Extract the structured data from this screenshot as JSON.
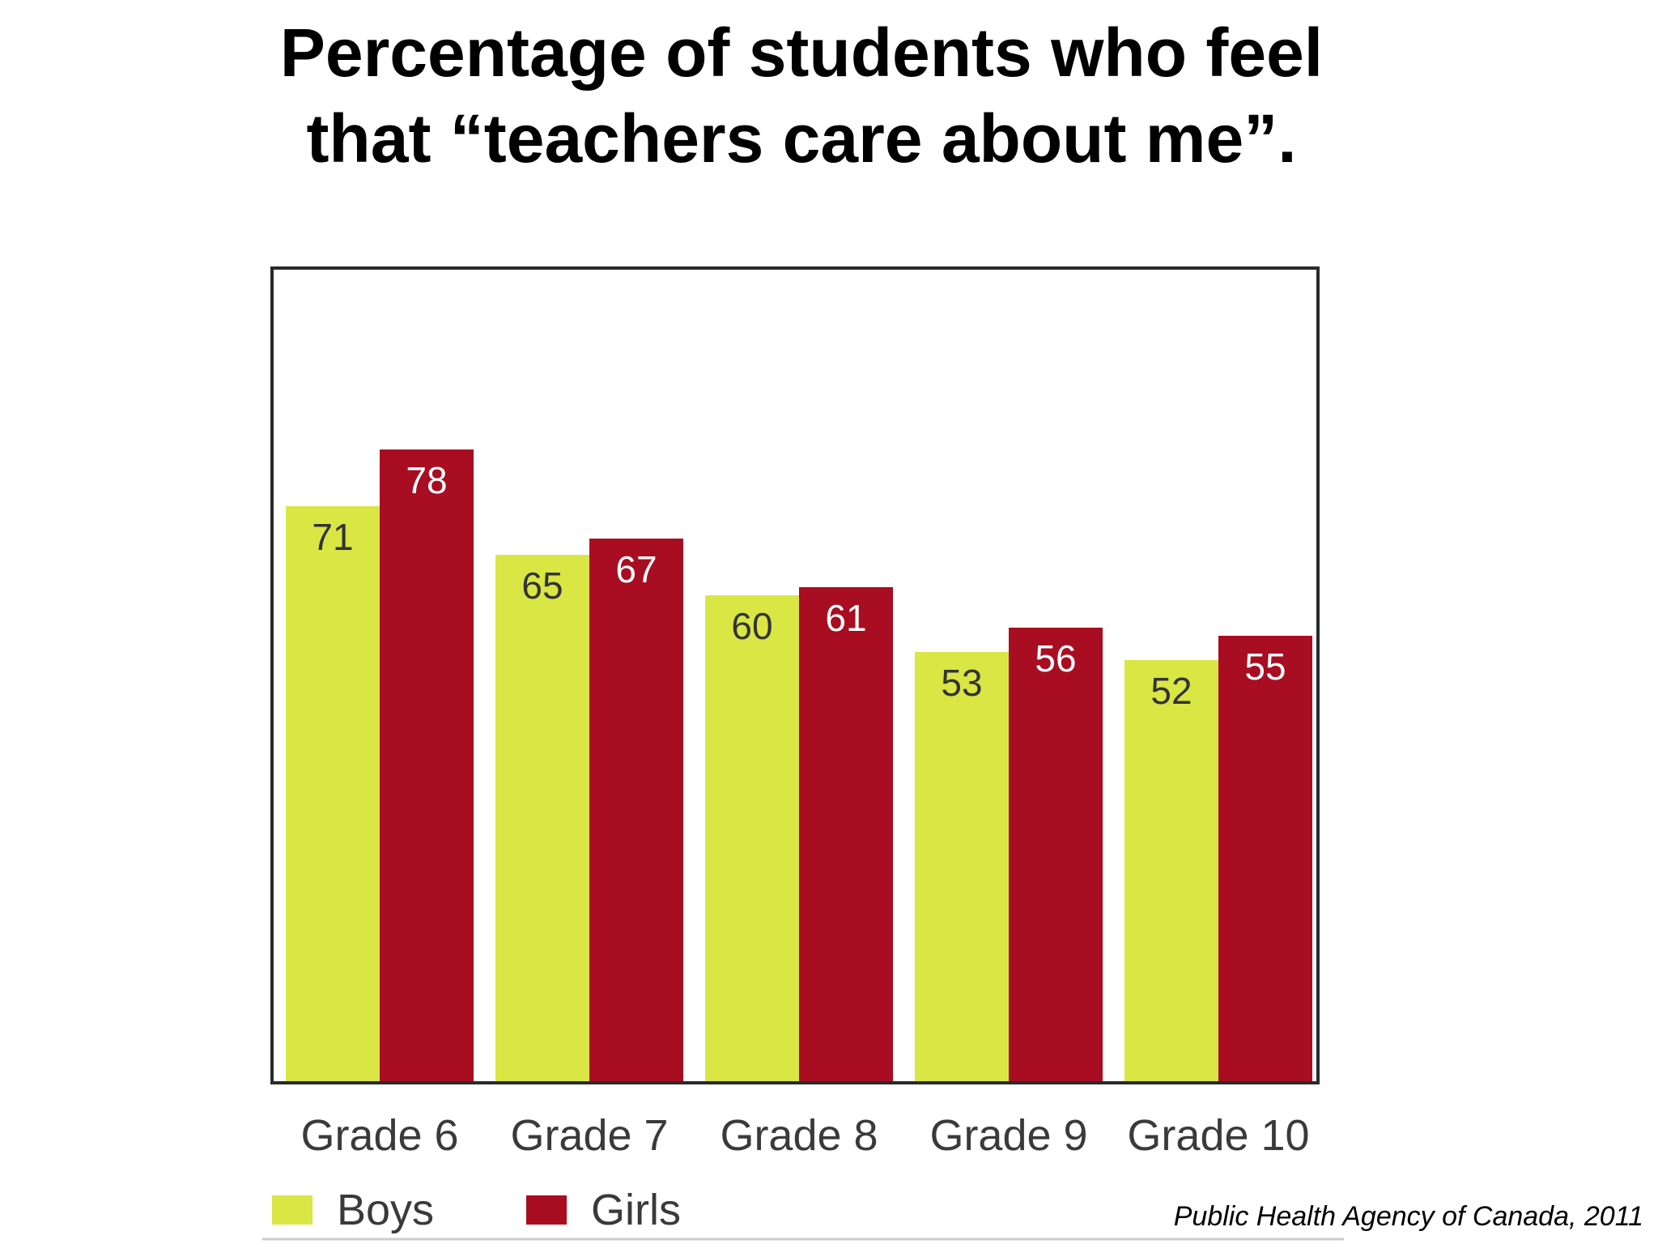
{
  "slide": {
    "title": "Percentage of students who feel that “teachers care about me”.",
    "source": "Public Health Agency of Canada, 2011"
  },
  "chart_data": {
    "type": "bar",
    "title": "Percentage of students who feel that “teachers care about me”.",
    "categories": [
      "Grade 6",
      "Grade 7",
      "Grade 8",
      "Grade 9",
      "Grade 10"
    ],
    "series": [
      {
        "name": "Boys",
        "color": "#d9e644",
        "values": [
          71,
          65,
          60,
          53,
          52
        ]
      },
      {
        "name": "Girls",
        "color": "#a80d22",
        "values": [
          78,
          67,
          61,
          56,
          55
        ]
      }
    ],
    "ylim": [
      0,
      100
    ],
    "grid": false,
    "legend_position": "bottom-left",
    "data_labels": true
  }
}
